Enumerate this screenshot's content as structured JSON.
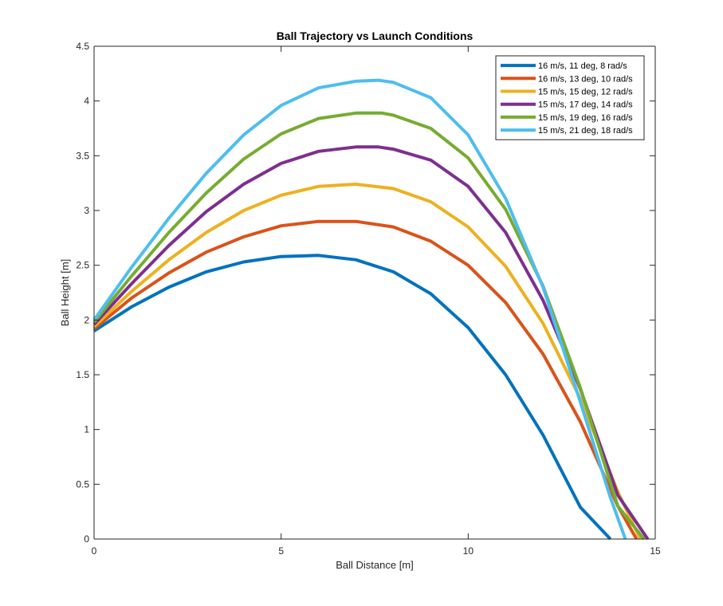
{
  "chart_data": {
    "type": "line",
    "title": "Ball Trajectory vs Launch Conditions",
    "xlabel": "Ball Distance [m]",
    "ylabel": "Ball Height [m]",
    "xlim": [
      0,
      15
    ],
    "ylim": [
      0,
      4.5
    ],
    "x_ticks": [
      0,
      5,
      10,
      15
    ],
    "y_ticks": [
      0,
      0.5,
      1,
      1.5,
      2,
      2.5,
      3,
      3.5,
      4,
      4.5
    ],
    "x_tick_labels": [
      "0",
      "5",
      "10",
      "15"
    ],
    "y_tick_labels": [
      "0",
      "0.5",
      "1",
      "1.5",
      "2",
      "2.5",
      "3",
      "3.5",
      "4",
      "4.5"
    ],
    "grid": false,
    "legend_position": "top-right",
    "series": [
      {
        "name": "16 m/s, 11 deg, 8 rad/s",
        "color": "#0072BD",
        "x": [
          0,
          1,
          2,
          3,
          4,
          5,
          6,
          7,
          8,
          9,
          10,
          11,
          12,
          13,
          13.8
        ],
        "y": [
          1.9,
          2.12,
          2.3,
          2.44,
          2.53,
          2.58,
          2.59,
          2.55,
          2.44,
          2.24,
          1.93,
          1.5,
          0.95,
          0.29,
          0
        ]
      },
      {
        "name": "16 m/s, 13 deg, 10 rad/s",
        "color": "#D95319",
        "x": [
          0,
          1,
          2,
          3,
          4,
          5,
          6,
          7,
          8,
          9,
          10,
          11,
          12,
          13,
          14,
          14.5
        ],
        "y": [
          1.92,
          2.2,
          2.43,
          2.62,
          2.76,
          2.86,
          2.9,
          2.9,
          2.85,
          2.72,
          2.5,
          2.16,
          1.69,
          1.07,
          0.3,
          0
        ]
      },
      {
        "name": "15 m/s, 15 deg, 12 rad/s",
        "color": "#EDB120",
        "x": [
          0,
          1,
          2,
          3,
          4,
          5,
          6,
          7,
          8,
          9,
          10,
          11,
          12,
          13,
          14,
          14.6
        ],
        "y": [
          1.94,
          2.26,
          2.55,
          2.8,
          3.0,
          3.14,
          3.22,
          3.24,
          3.2,
          3.08,
          2.85,
          2.49,
          1.97,
          1.28,
          0.43,
          0
        ]
      },
      {
        "name": "15 m/s, 17 deg, 14 rad/s",
        "color": "#7E2F8E",
        "x": [
          0,
          1,
          2,
          3,
          4,
          5,
          6,
          7,
          7.6,
          8,
          9,
          10,
          11,
          12,
          13,
          14,
          14.8
        ],
        "y": [
          1.96,
          2.33,
          2.68,
          2.99,
          3.24,
          3.43,
          3.54,
          3.58,
          3.58,
          3.56,
          3.46,
          3.22,
          2.8,
          2.18,
          1.37,
          0.4,
          0
        ]
      },
      {
        "name": "15 m/s, 19 deg, 16 rad/s",
        "color": "#77AC30",
        "x": [
          0,
          1,
          2,
          3,
          4,
          5,
          6,
          7,
          7.7,
          8,
          9,
          10,
          11,
          12,
          13,
          14,
          14.7
        ],
        "y": [
          1.98,
          2.4,
          2.8,
          3.16,
          3.47,
          3.7,
          3.84,
          3.89,
          3.89,
          3.87,
          3.75,
          3.48,
          3.01,
          2.31,
          1.38,
          0.3,
          0
        ]
      },
      {
        "name": "15 m/s, 21 deg, 18 rad/s",
        "color": "#4DBEEE",
        "x": [
          0,
          1,
          2,
          3,
          4,
          5,
          6,
          7,
          7.6,
          8,
          9,
          10,
          11,
          12,
          13,
          13.8,
          14.2
        ],
        "y": [
          2.0,
          2.48,
          2.93,
          3.34,
          3.69,
          3.96,
          4.12,
          4.18,
          4.19,
          4.17,
          4.03,
          3.69,
          3.11,
          2.3,
          1.25,
          0.38,
          0
        ]
      }
    ]
  }
}
